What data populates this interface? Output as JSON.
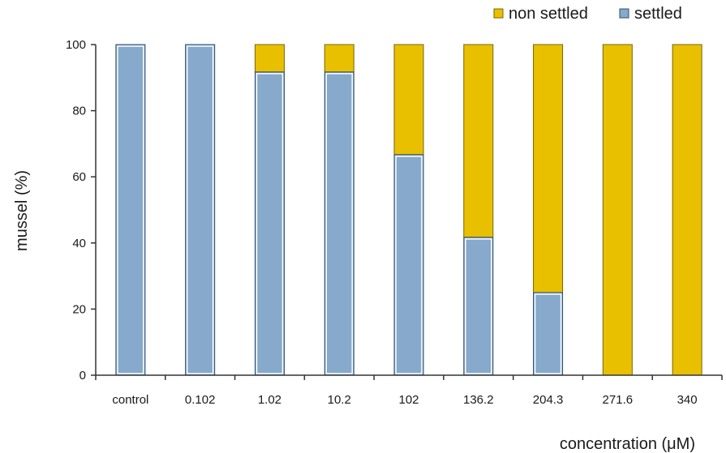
{
  "chart_data": {
    "type": "bar",
    "stacked": true,
    "categories": [
      "control",
      "0.102",
      "1.02",
      "10.2",
      "102",
      "136.2",
      "204.3",
      "271.6",
      "340"
    ],
    "series": [
      {
        "name": "settled",
        "values": [
          100,
          100,
          91.7,
          91.7,
          66.7,
          41.7,
          25,
          0,
          0
        ],
        "color": "#86a9cc"
      },
      {
        "name": "non settled",
        "values": [
          0,
          0,
          8.3,
          8.3,
          33.3,
          58.3,
          75,
          100,
          100
        ],
        "color": "#e8c000"
      }
    ],
    "xlabel": "concentration (μM)",
    "ylabel": "mussel (%)",
    "ylim": [
      0,
      100
    ],
    "yticks": [
      0,
      20,
      40,
      60,
      80,
      100
    ],
    "grid": false,
    "legend": {
      "placement": "top-right",
      "entries": [
        "non settled",
        "settled"
      ]
    }
  }
}
